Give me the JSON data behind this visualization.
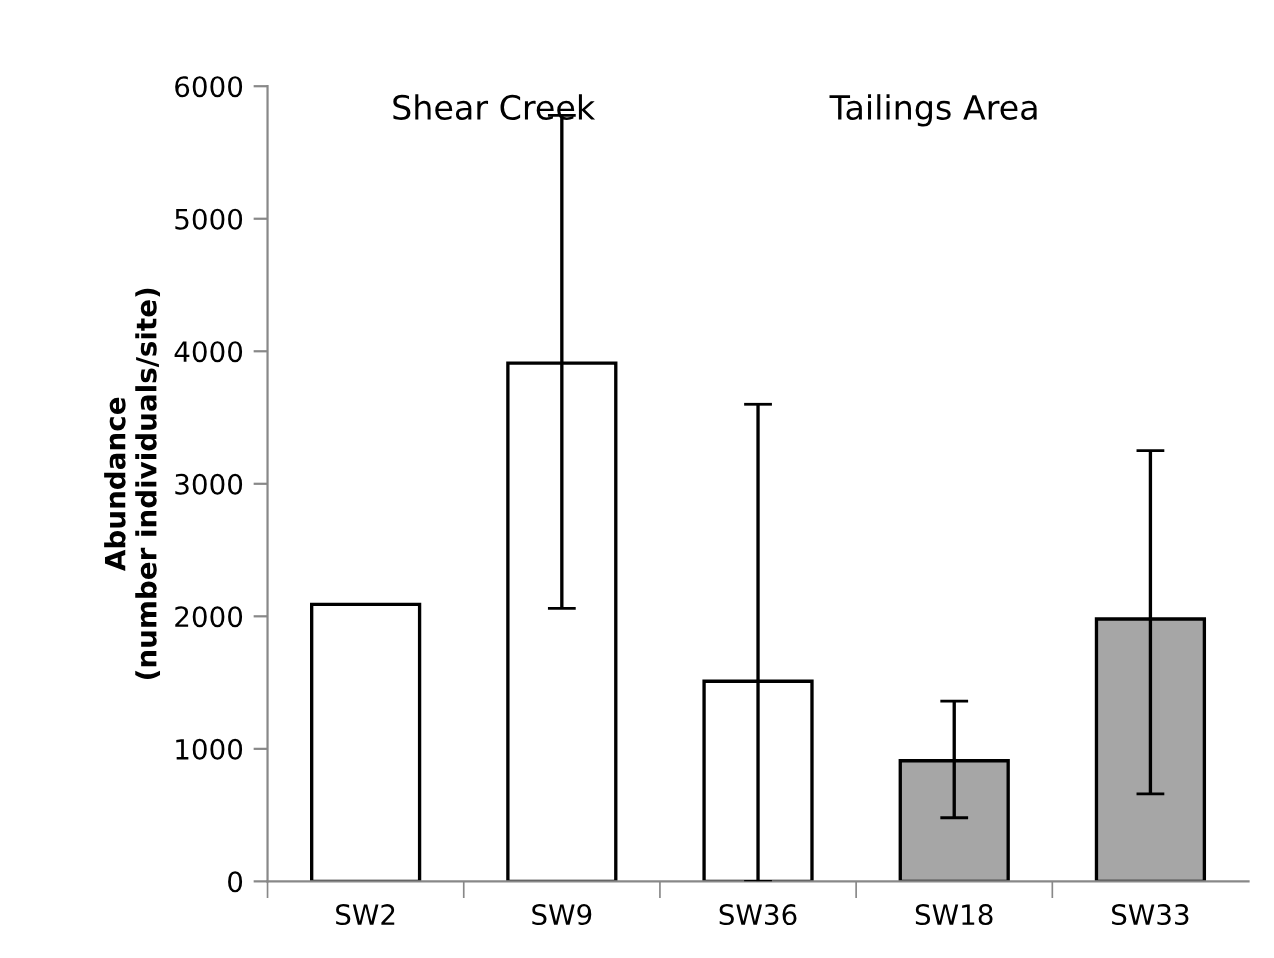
{
  "chart_data": {
    "type": "bar",
    "ylabel": "Abundance\n(number individuals/site)",
    "categories": [
      "SW2",
      "SW9",
      "SW36",
      "SW18",
      "SW33"
    ],
    "values": [
      2090,
      3910,
      1510,
      910,
      1980
    ],
    "colors": [
      "#ffffff",
      "#ffffff",
      "#ffffff",
      "#a6a6a6",
      "#a6a6a6"
    ],
    "errors": [
      null,
      [
        2060,
        5780
      ],
      [
        0,
        3600
      ],
      [
        480,
        1360
      ],
      [
        660,
        3250
      ]
    ],
    "annotations": [
      "Shear Creek",
      "Tailings Area"
    ],
    "ylim": [
      0,
      6000
    ],
    "yticks": [
      0,
      1000,
      2000,
      3000,
      4000,
      5000,
      6000
    ],
    "grid": false,
    "legend": false
  }
}
